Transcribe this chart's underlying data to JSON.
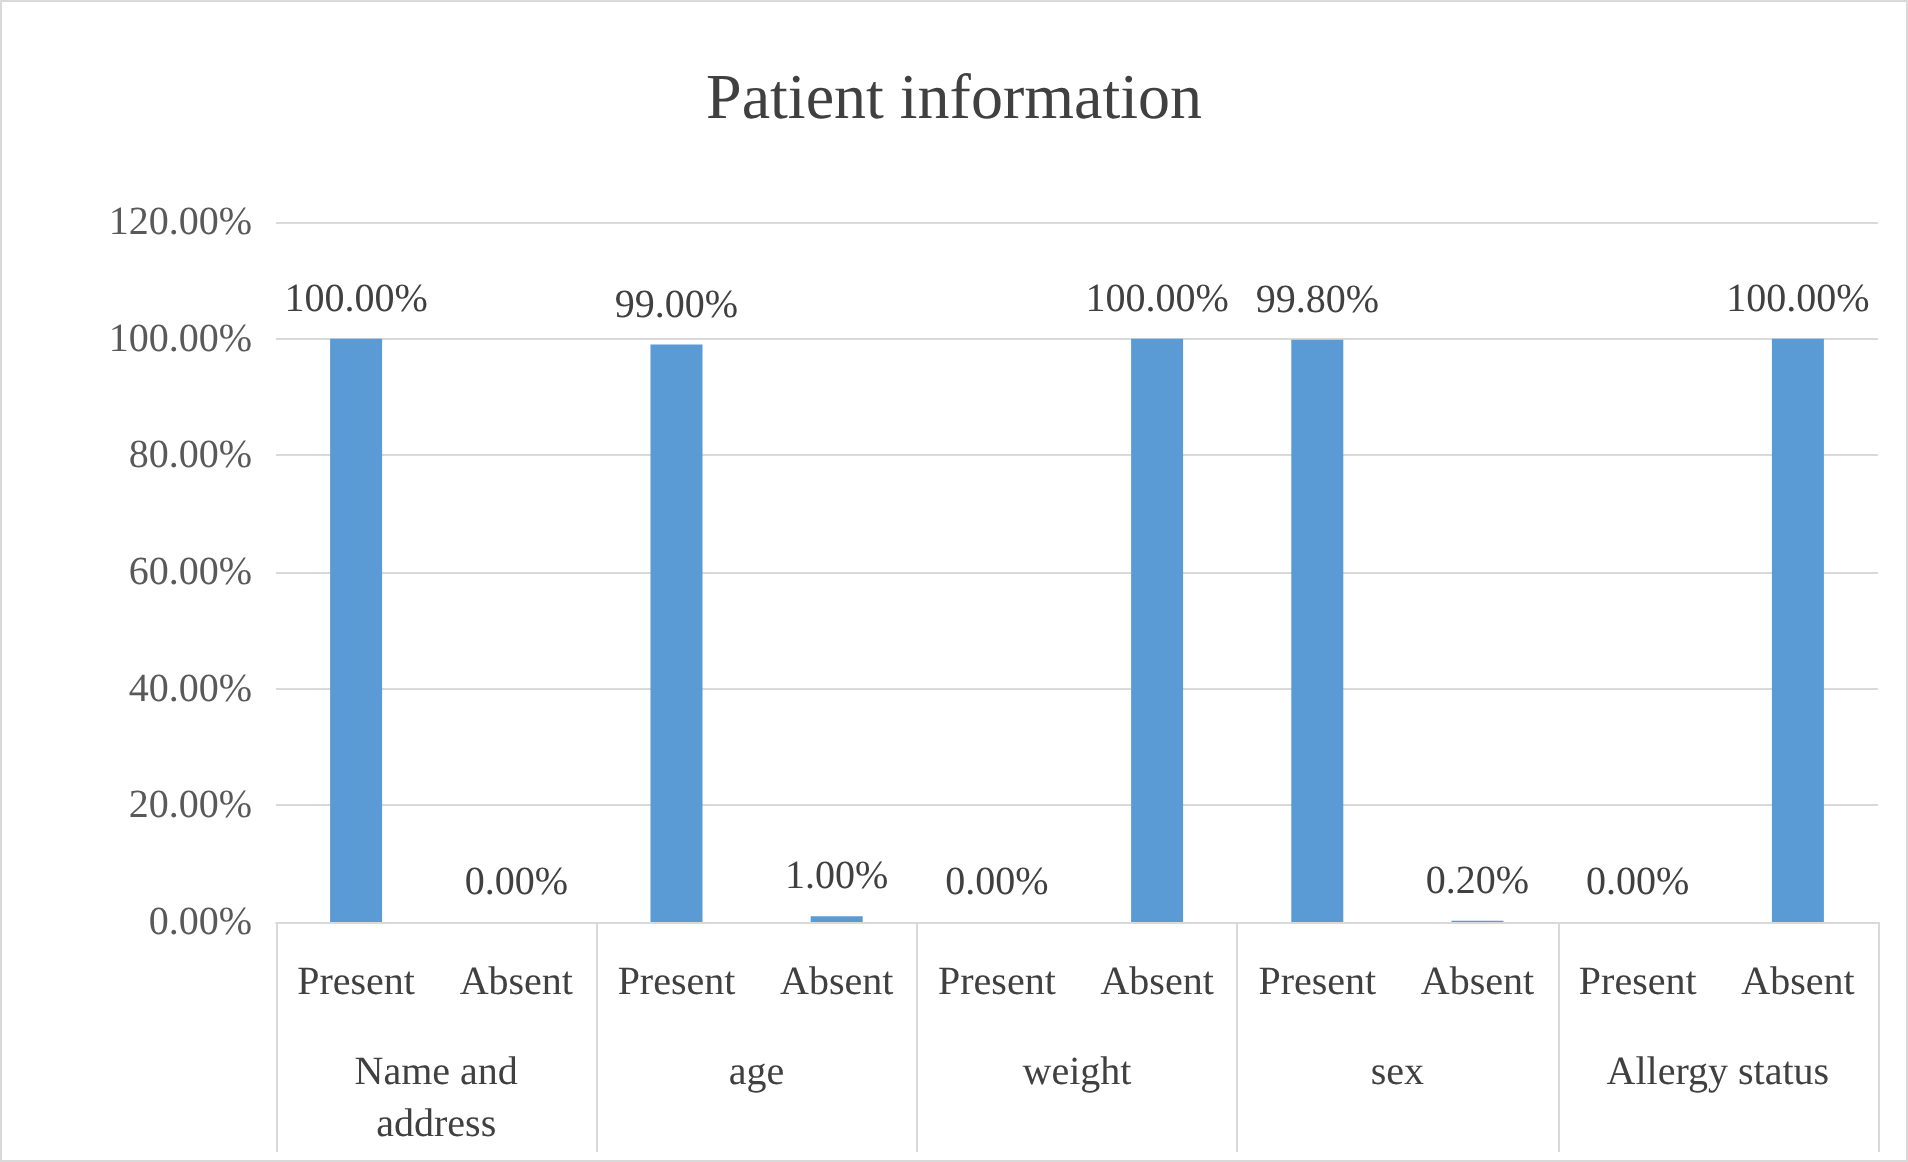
{
  "chart_data": {
    "type": "bar",
    "title": "Patient information",
    "categories": [
      "Present",
      "Absent",
      "Present",
      "Absent",
      "Present",
      "Absent",
      "Present",
      "Absent",
      "Present",
      "Absent"
    ],
    "annotations": [
      "Name and address",
      "age",
      "weight",
      "sex",
      "Allergy status"
    ],
    "values": [
      100,
      0,
      99,
      1,
      0,
      100,
      99.8,
      0.2,
      0,
      100
    ],
    "value_labels": [
      "100.00%",
      "0.00%",
      "99.00%",
      "1.00%",
      "0.00%",
      "100.00%",
      "99.80%",
      "0.20%",
      "0.00%",
      "100.00%"
    ],
    "color": "#5b9bd5",
    "ylim": [
      0,
      120
    ],
    "yticks": [
      {
        "value": 0,
        "label": "0.00%"
      },
      {
        "value": 20,
        "label": "20.00%"
      },
      {
        "value": 40,
        "label": "40.00%"
      },
      {
        "value": 60,
        "label": "60.00%"
      },
      {
        "value": 80,
        "label": "80.00%"
      },
      {
        "value": 100,
        "label": "100.00%"
      },
      {
        "value": 120,
        "label": "120.00%"
      }
    ],
    "grid": "y"
  }
}
